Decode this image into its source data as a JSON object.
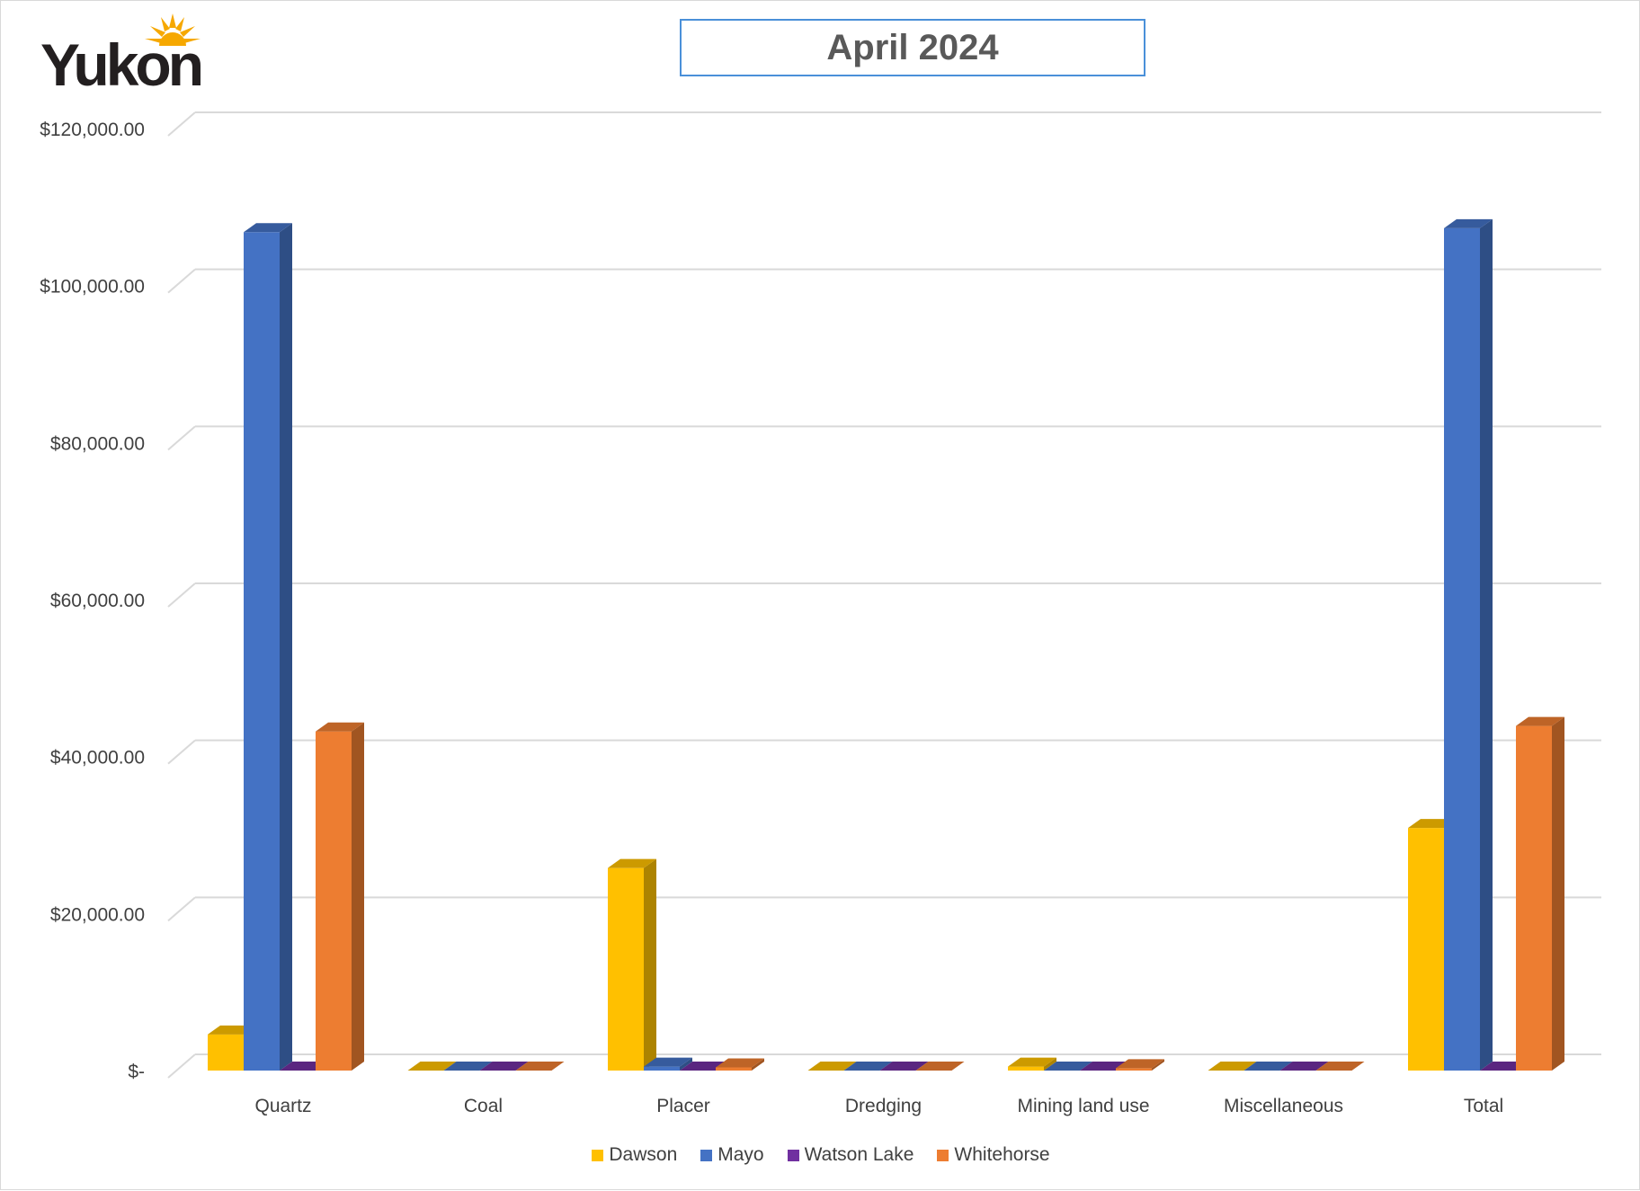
{
  "chart_data": {
    "type": "bar",
    "title": "April 2024",
    "categories": [
      "Quartz",
      "Coal",
      "Placer",
      "Dredging",
      "Mining land use",
      "Miscellaneous",
      "Total"
    ],
    "series": [
      {
        "name": "Dawson",
        "color": "#FFC000",
        "values": [
          4600,
          0,
          25800,
          0,
          500,
          0,
          30900
        ]
      },
      {
        "name": "Mayo",
        "color": "#4472C4",
        "values": [
          106800,
          0,
          500,
          0,
          0,
          0,
          107300
        ]
      },
      {
        "name": "Watson Lake",
        "color": "#7030A0",
        "values": [
          0,
          0,
          0,
          0,
          0,
          0,
          0
        ]
      },
      {
        "name": "Whitehorse",
        "color": "#ED7D31",
        "values": [
          43200,
          0,
          400,
          0,
          300,
          0,
          43900
        ]
      }
    ],
    "y_ticks": [
      {
        "value": 0,
        "label": "$-"
      },
      {
        "value": 20000,
        "label": "$20,000.00"
      },
      {
        "value": 40000,
        "label": "$40,000.00"
      },
      {
        "value": 60000,
        "label": "$60,000.00"
      },
      {
        "value": 80000,
        "label": "$80,000.00"
      },
      {
        "value": 100000,
        "label": "$100,000.00"
      },
      {
        "value": 120000,
        "label": "$120,000.00"
      }
    ],
    "ylim": [
      0,
      120000
    ],
    "grid": true,
    "legend_position": "bottom",
    "style": "3d-clustered-column"
  },
  "logo": {
    "text": "Yukon",
    "sun_color": "#F6A800"
  }
}
